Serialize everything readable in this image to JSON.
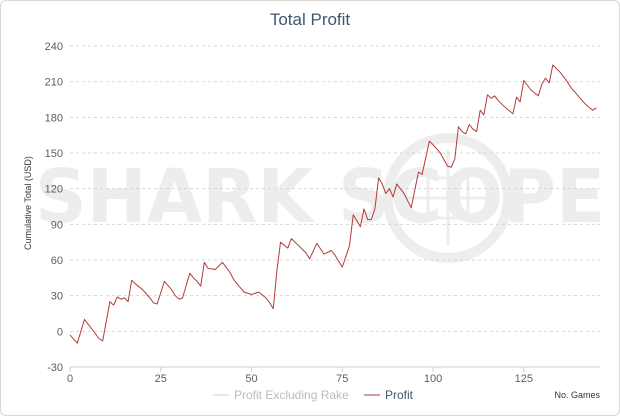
{
  "chart_data": {
    "type": "line",
    "title": "Total Profit",
    "xlabel": "No. Games",
    "ylabel": "Cumulative Total (USD)",
    "xlim": [
      0,
      146
    ],
    "ylim": [
      -30,
      240
    ],
    "x_ticks": [
      0,
      25,
      50,
      75,
      100,
      125
    ],
    "y_ticks": [
      -30,
      0,
      30,
      60,
      90,
      120,
      150,
      180,
      210,
      240
    ],
    "grid": true,
    "legend_position": "bottom-center",
    "watermark": "SHARK SCOPE",
    "series": [
      {
        "name": "Profit Excluding Rake",
        "color": "#cccccc",
        "visible": false,
        "x": [],
        "y": []
      },
      {
        "name": "Profit",
        "color": "#b23b3b",
        "x": [
          0,
          2,
          4,
          6,
          8,
          9,
          11,
          12,
          13,
          14,
          15,
          16,
          17,
          18,
          20,
          22,
          23,
          24,
          26,
          28,
          29,
          30,
          31,
          33,
          34,
          35,
          36,
          37,
          38,
          40,
          42,
          44,
          45,
          46,
          48,
          50,
          52,
          54,
          55,
          56,
          57,
          58,
          60,
          61,
          63,
          65,
          66,
          68,
          70,
          72,
          73,
          75,
          77,
          78,
          80,
          81,
          82,
          83,
          84,
          85,
          86,
          87,
          88,
          89,
          90,
          92,
          94,
          96,
          97,
          99,
          100,
          102,
          104,
          105,
          106,
          107,
          108,
          109,
          110,
          111,
          112,
          113,
          114,
          115,
          116,
          117,
          118,
          120,
          122,
          123,
          124,
          125,
          127,
          129,
          130,
          131,
          132,
          133,
          134,
          135,
          136,
          137,
          138,
          140,
          142,
          144,
          145
        ],
        "y": [
          -3,
          -10,
          10,
          2,
          -6,
          -8,
          25,
          22,
          29,
          27,
          28,
          25,
          43,
          40,
          35,
          28,
          24,
          23,
          42,
          35,
          30,
          27,
          28,
          49,
          45,
          42,
          38,
          58,
          53,
          52,
          58,
          50,
          44,
          40,
          33,
          31,
          33,
          28,
          24,
          19,
          51,
          75,
          70,
          78,
          72,
          66,
          61,
          74,
          65,
          68,
          64,
          54,
          72,
          98,
          88,
          103,
          94,
          94,
          103,
          129,
          124,
          116,
          120,
          113,
          124,
          116,
          104,
          134,
          132,
          160,
          157,
          150,
          139,
          138,
          145,
          172,
          168,
          166,
          174,
          170,
          168,
          186,
          182,
          199,
          196,
          198,
          194,
          188,
          183,
          197,
          193,
          211,
          203,
          198,
          208,
          213,
          209,
          224,
          221,
          218,
          214,
          210,
          205,
          198,
          191,
          186,
          188
        ]
      }
    ]
  }
}
